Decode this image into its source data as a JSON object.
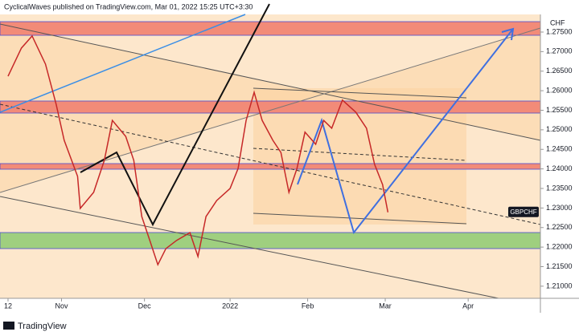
{
  "chart_data": {
    "type": "line",
    "title": "CyclicalWaves published on TradingView.com, Mar 01, 2022 15:25 UTC+3:30",
    "y_axis_label": "CHF",
    "brand": "TradingView",
    "x": [
      0,
      5,
      9,
      14,
      18,
      21,
      26,
      27,
      32,
      36,
      39,
      44,
      47,
      50,
      53,
      56,
      59,
      63,
      68,
      71,
      74,
      78,
      83,
      86,
      89,
      92,
      95,
      99,
      102,
      105,
      108,
      111,
      115,
      118,
      121,
      125,
      130,
      134,
      137,
      140,
      142
    ],
    "series": [
      {
        "name": "GBPCHF",
        "color": "#c62828",
        "values": [
          1.2637,
          1.2709,
          1.274,
          1.2668,
          1.2565,
          1.2473,
          1.2381,
          1.2299,
          1.234,
          1.2422,
          1.2524,
          1.2483,
          1.2422,
          1.2278,
          1.2217,
          1.2155,
          1.2196,
          1.2217,
          1.2237,
          1.2176,
          1.2278,
          1.2319,
          1.235,
          1.2401,
          1.2524,
          1.2596,
          1.2524,
          1.2473,
          1.2442,
          1.234,
          1.2401,
          1.2494,
          1.2463,
          1.2524,
          1.2504,
          1.2576,
          1.2545,
          1.2504,
          1.2412,
          1.236,
          1.2289
        ]
      }
    ],
    "xlim": [
      -3,
      199
    ],
    "xticks": [
      {
        "value": 0,
        "label": "12"
      },
      {
        "value": 20,
        "label": "Nov"
      },
      {
        "value": 51,
        "label": "Dec"
      },
      {
        "value": 83,
        "label": "2022"
      },
      {
        "value": 112,
        "label": "Feb"
      },
      {
        "value": 141,
        "label": "Mar"
      },
      {
        "value": 172,
        "label": "Apr"
      }
    ],
    "ylim": [
      1.2069,
      1.2832
    ],
    "yticks": [
      {
        "value": 1.21,
        "label": "1.21000"
      },
      {
        "value": 1.215,
        "label": "1.21500"
      },
      {
        "value": 1.22,
        "label": "1.22000"
      },
      {
        "value": 1.225,
        "label": "1.22500"
      },
      {
        "value": 1.23,
        "label": "1.23000"
      },
      {
        "value": 1.235,
        "label": "1.23500"
      },
      {
        "value": 1.24,
        "label": "1.24000"
      },
      {
        "value": 1.245,
        "label": "1.24500"
      },
      {
        "value": 1.25,
        "label": "1.25000"
      },
      {
        "value": 1.255,
        "label": "1.25500"
      },
      {
        "value": 1.26,
        "label": "1.26000"
      },
      {
        "value": 1.265,
        "label": "1.26500"
      },
      {
        "value": 1.27,
        "label": "1.27000"
      },
      {
        "value": 1.275,
        "label": "1.27500"
      }
    ]
  }
}
